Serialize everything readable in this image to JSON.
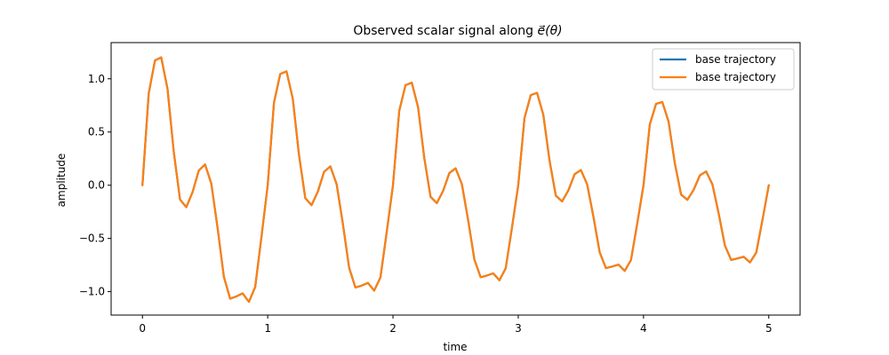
{
  "chart_data": {
    "type": "line",
    "title": "Observed scalar signal along ⃗e(θ)",
    "title_plain": "Observed scalar signal along ",
    "title_math": "e⃗(θ)",
    "xlabel": "time",
    "ylabel": "amplitude",
    "xlim": [
      -0.25,
      5.25
    ],
    "ylim": [
      -1.22,
      1.34
    ],
    "x_ticks": [
      0,
      1,
      2,
      3,
      4,
      5
    ],
    "y_ticks": [
      -1.0,
      -0.5,
      0.0,
      0.5,
      1.0
    ],
    "x_tick_labels": [
      "0",
      "1",
      "2",
      "3",
      "4",
      "5"
    ],
    "y_tick_labels": [
      "−1.0",
      "−0.5",
      "0.0",
      "0.5",
      "1.0"
    ],
    "grid": false,
    "legend_position": "upper right",
    "x": [
      0.0,
      0.05,
      0.1,
      0.15,
      0.2,
      0.25,
      0.3,
      0.35,
      0.4,
      0.45,
      0.5,
      0.55,
      0.6,
      0.65,
      0.7,
      0.75,
      0.8,
      0.85,
      0.9,
      0.95,
      1.0,
      1.05,
      1.1,
      1.15,
      1.2,
      1.25,
      1.3,
      1.35,
      1.4,
      1.45,
      1.5,
      1.55,
      1.6,
      1.65,
      1.7,
      1.75,
      1.8,
      1.85,
      1.9,
      1.95,
      2.0,
      2.05,
      2.1,
      2.15,
      2.2,
      2.25,
      2.3,
      2.35,
      2.4,
      2.45,
      2.5,
      2.55,
      2.6,
      2.65,
      2.7,
      2.75,
      2.8,
      2.85,
      2.9,
      2.95,
      3.0,
      3.05,
      3.1,
      3.15,
      3.2,
      3.25,
      3.3,
      3.35,
      3.4,
      3.45,
      3.5,
      3.55,
      3.6,
      3.65,
      3.7,
      3.75,
      3.8,
      3.85,
      3.9,
      3.95,
      4.0,
      4.05,
      4.1,
      4.15,
      4.2,
      4.25,
      4.3,
      4.35,
      4.4,
      4.45,
      4.5,
      4.55,
      4.6,
      4.65,
      4.7,
      4.75,
      4.8,
      4.85,
      4.9,
      4.95,
      5.0
    ],
    "series": [
      {
        "name": "base trajectory",
        "color": "#1f77b4",
        "values": [
          0.0,
          0.862,
          1.172,
          1.201,
          0.907,
          0.314,
          -0.134,
          -0.206,
          -0.066,
          0.139,
          0.195,
          0.014,
          -0.403,
          -0.86,
          -1.066,
          -1.045,
          -1.016,
          -1.096,
          -0.957,
          -0.487,
          0.0,
          0.775,
          1.045,
          1.07,
          0.815,
          0.283,
          -0.121,
          -0.187,
          -0.061,
          0.126,
          0.177,
          0.011,
          -0.362,
          -0.776,
          -0.961,
          -0.943,
          -0.918,
          -0.99,
          -0.866,
          -0.441,
          0.0,
          0.699,
          0.94,
          0.964,
          0.735,
          0.255,
          -0.109,
          -0.168,
          -0.054,
          0.114,
          0.159,
          0.01,
          -0.327,
          -0.699,
          -0.865,
          -0.848,
          -0.828,
          -0.893,
          -0.78,
          -0.398,
          0.0,
          0.631,
          0.847,
          0.868,
          0.663,
          0.23,
          -0.098,
          -0.152,
          -0.049,
          0.103,
          0.143,
          0.009,
          -0.295,
          -0.63,
          -0.779,
          -0.764,
          -0.746,
          -0.805,
          -0.703,
          -0.359,
          0.0,
          0.569,
          0.764,
          0.782,
          0.598,
          0.207,
          -0.088,
          -0.137,
          -0.044,
          0.093,
          0.129,
          0.008,
          -0.266,
          -0.568,
          -0.702,
          -0.688,
          -0.672,
          -0.725,
          -0.633,
          -0.323,
          0.0
        ]
      },
      {
        "name": "base trajectory",
        "color": "#ff7f0e",
        "values": [
          0.0,
          0.862,
          1.172,
          1.201,
          0.907,
          0.314,
          -0.134,
          -0.206,
          -0.066,
          0.139,
          0.195,
          0.014,
          -0.403,
          -0.86,
          -1.066,
          -1.045,
          -1.016,
          -1.096,
          -0.957,
          -0.487,
          0.0,
          0.775,
          1.045,
          1.07,
          0.815,
          0.283,
          -0.121,
          -0.187,
          -0.061,
          0.126,
          0.177,
          0.011,
          -0.362,
          -0.776,
          -0.961,
          -0.943,
          -0.918,
          -0.99,
          -0.866,
          -0.441,
          0.0,
          0.699,
          0.94,
          0.964,
          0.735,
          0.255,
          -0.109,
          -0.168,
          -0.054,
          0.114,
          0.159,
          0.01,
          -0.327,
          -0.699,
          -0.865,
          -0.848,
          -0.828,
          -0.893,
          -0.78,
          -0.398,
          0.0,
          0.631,
          0.847,
          0.868,
          0.663,
          0.23,
          -0.098,
          -0.152,
          -0.049,
          0.103,
          0.143,
          0.009,
          -0.295,
          -0.63,
          -0.779,
          -0.764,
          -0.746,
          -0.805,
          -0.703,
          -0.359,
          0.0,
          0.569,
          0.764,
          0.782,
          0.598,
          0.207,
          -0.088,
          -0.137,
          -0.044,
          0.093,
          0.129,
          0.008,
          -0.266,
          -0.568,
          -0.702,
          -0.688,
          -0.672,
          -0.725,
          -0.633,
          -0.323,
          0.0
        ]
      }
    ]
  }
}
